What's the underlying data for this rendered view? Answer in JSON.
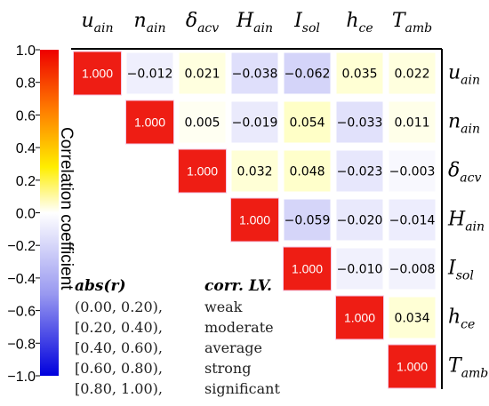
{
  "chart_data": {
    "type": "heatmap",
    "variables": [
      {
        "base": "u",
        "sub": "ain"
      },
      {
        "base": "n",
        "sub": "ain"
      },
      {
        "base": "δ",
        "sub": "acv"
      },
      {
        "base": "H",
        "sub": "ain"
      },
      {
        "base": "I",
        "sub": "sol"
      },
      {
        "base": "h",
        "sub": "ce"
      },
      {
        "base": "T",
        "sub": "amb"
      }
    ],
    "upper_triangle": [
      [
        "1.000",
        "−0.012",
        "0.021",
        "−0.038",
        "−0.062",
        "0.035",
        "0.022"
      ],
      [
        null,
        "1.000",
        "0.005",
        "−0.019",
        "0.054",
        "−0.033",
        "0.011"
      ],
      [
        null,
        null,
        "1.000",
        "0.032",
        "0.048",
        "−0.023",
        "−0.003"
      ],
      [
        null,
        null,
        null,
        "1.000",
        "−0.059",
        "−0.020",
        "−0.014"
      ],
      [
        null,
        null,
        null,
        null,
        "1.000",
        "−0.010",
        "−0.008"
      ],
      [
        null,
        null,
        null,
        null,
        null,
        "1.000",
        "0.034"
      ],
      [
        null,
        null,
        null,
        null,
        null,
        null,
        "1.000"
      ]
    ],
    "colorbar": {
      "label": "Correlation coefficient",
      "range": [
        -1.0,
        1.0
      ],
      "ticks": [
        "1.0",
        "0.8",
        "0.6",
        "0.4",
        "0.2",
        "0.0",
        "−0.2",
        "−0.4",
        "−0.6",
        "−0.8",
        "−1.0"
      ],
      "colors": [
        "#0000dd",
        "#ffffff",
        "#ffff00",
        "#ff8000",
        "#ee0000"
      ]
    },
    "legend_table": {
      "headers": [
        "abs(r)",
        "corr. LV."
      ],
      "rows": [
        [
          "(0.00, 0.20),",
          "weak"
        ],
        [
          "[0.20, 0.40),",
          "moderate"
        ],
        [
          "[0.40, 0.60),",
          "average"
        ],
        [
          "[0.60, 0.80),",
          "strong"
        ],
        [
          "[0.80, 1.00),",
          "significant"
        ]
      ]
    }
  }
}
